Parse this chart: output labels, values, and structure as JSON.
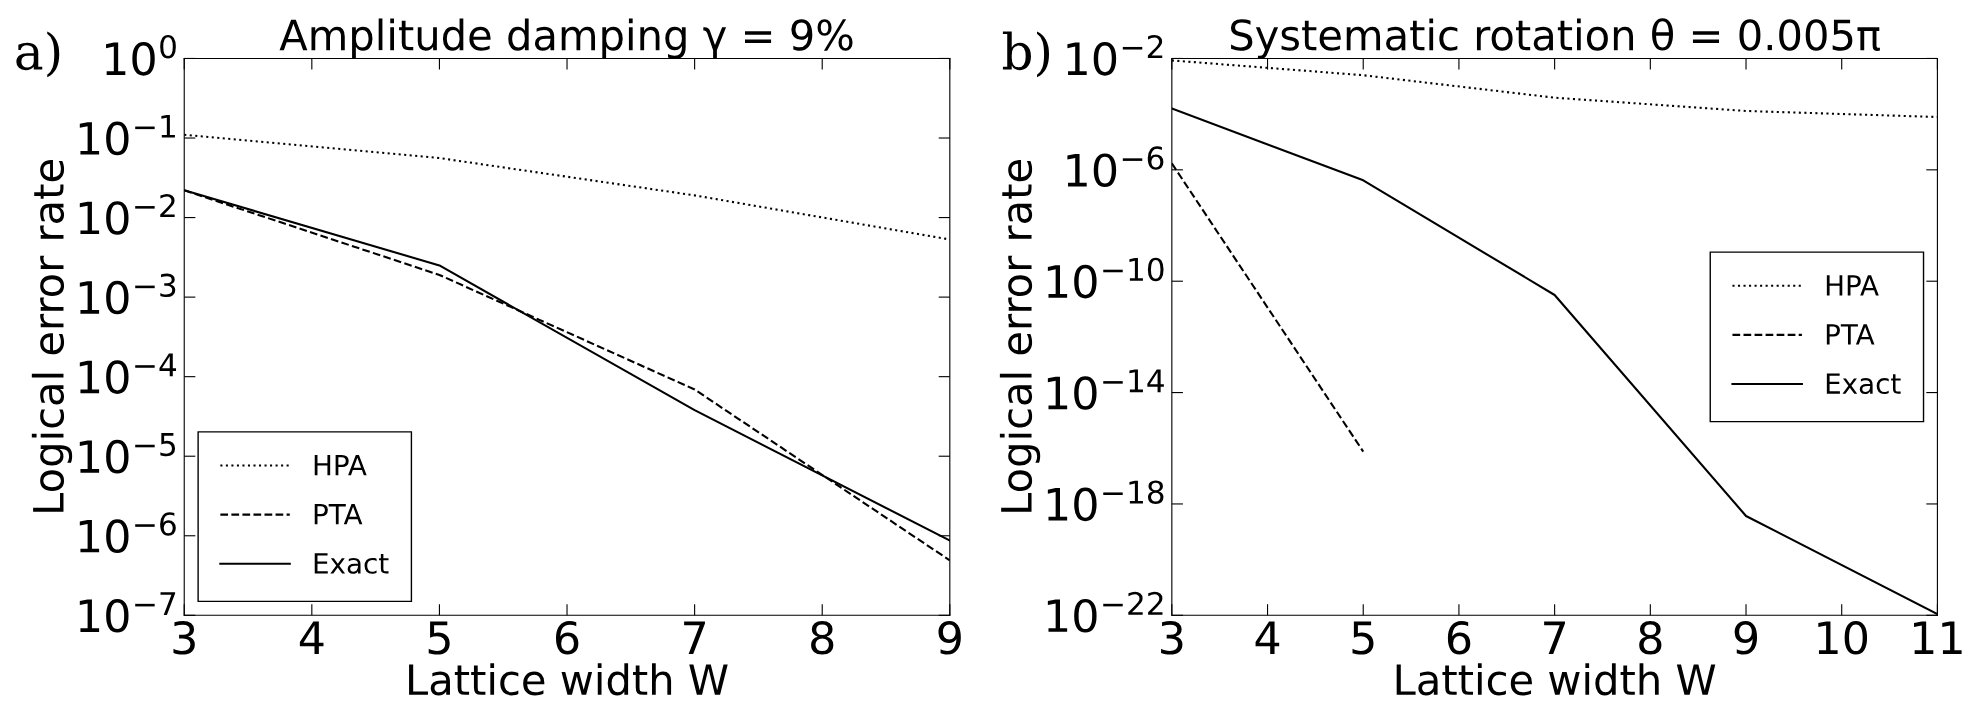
{
  "chart_data": [
    {
      "type": "line",
      "title": "Amplitude damping γ = 9%",
      "xlabel": "Lattice width W",
      "ylabel": "Logical error rate",
      "annotations": [
        "a)"
      ],
      "log": "y",
      "grid": false,
      "legend": "bottom left",
      "xlim": [
        3,
        9
      ],
      "xticks": [
        3,
        4,
        5,
        6,
        7,
        8,
        9
      ],
      "ylim": [
        1e-07,
        1
      ],
      "yticks": [
        {
          "value": 1,
          "label": "10$^{0}$"
        },
        {
          "value": 0.1,
          "label": "10$^{−1}$"
        },
        {
          "value": 0.01,
          "label": "10$^{−2}$"
        },
        {
          "value": 0.001,
          "label": "10$^{−3}$"
        },
        {
          "value": 0.0001,
          "label": "10$^{−4}$"
        },
        {
          "value": 1e-05,
          "label": "10$^{−5}$"
        },
        {
          "value": 1e-06,
          "label": "10$^{−6}$"
        },
        {
          "value": 1e-07,
          "label": "10$^{−7}$"
        }
      ],
      "series": [
        {
          "name": "HPA",
          "color": "#000000",
          "line_style": "dotted",
          "x": [
            3,
            5,
            7,
            9
          ],
          "values": [
            0.11,
            0.056,
            0.019,
            0.0053
          ]
        },
        {
          "name": "PTA",
          "color": "#000000",
          "line_style": "dashed",
          "x": [
            3,
            5,
            7,
            9
          ],
          "values": [
            0.022,
            0.0019,
            6.9e-05,
            4.9e-07
          ]
        },
        {
          "name": "Exact",
          "color": "#000000",
          "line_style": "solid",
          "x": [
            3,
            5,
            7,
            9
          ],
          "values": [
            0.022,
            0.0025,
            3.8e-05,
            8.7e-07
          ]
        }
      ]
    },
    {
      "type": "line",
      "title": "Systematic rotation θ = 0.005π",
      "xlabel": "Lattice width W",
      "ylabel": "Logical error rate",
      "annotations": [
        "b)"
      ],
      "log": "y",
      "grid": false,
      "legend": "center right",
      "xlim": [
        3,
        11
      ],
      "xticks": [
        3,
        4,
        5,
        6,
        7,
        8,
        9,
        10,
        11
      ],
      "ylim": [
        1e-22,
        0.01
      ],
      "yticks": [
        {
          "value": 0.01,
          "label": "10$^{−2}$"
        },
        {
          "value": 1e-06,
          "label": "10$^{−6}$"
        },
        {
          "value": 1e-10,
          "label": "10$^{−10}$"
        },
        {
          "value": 1e-14,
          "label": "10$^{−14}$"
        },
        {
          "value": 1e-18,
          "label": "10$^{−18}$"
        },
        {
          "value": 1e-22,
          "label": "10$^{−22}$"
        }
      ],
      "series": [
        {
          "name": "HPA",
          "color": "#000000",
          "line_style": "dotted",
          "x": [
            3,
            5,
            7,
            9,
            11
          ],
          "values": [
            0.0085,
            0.0025,
            0.00039,
            0.00013,
            7.9e-05
          ]
        },
        {
          "name": "PTA",
          "color": "#000000",
          "line_style": "dashed",
          "x": [
            3,
            5
          ],
          "values": [
            1.7e-06,
            7.6e-17
          ]
        },
        {
          "name": "Exact",
          "color": "#000000",
          "line_style": "solid",
          "x": [
            3,
            5,
            7,
            9,
            11
          ],
          "values": [
            0.00016,
            4.2e-07,
            3.2e-11,
            3.7e-19,
            1.1e-22
          ]
        }
      ]
    }
  ]
}
